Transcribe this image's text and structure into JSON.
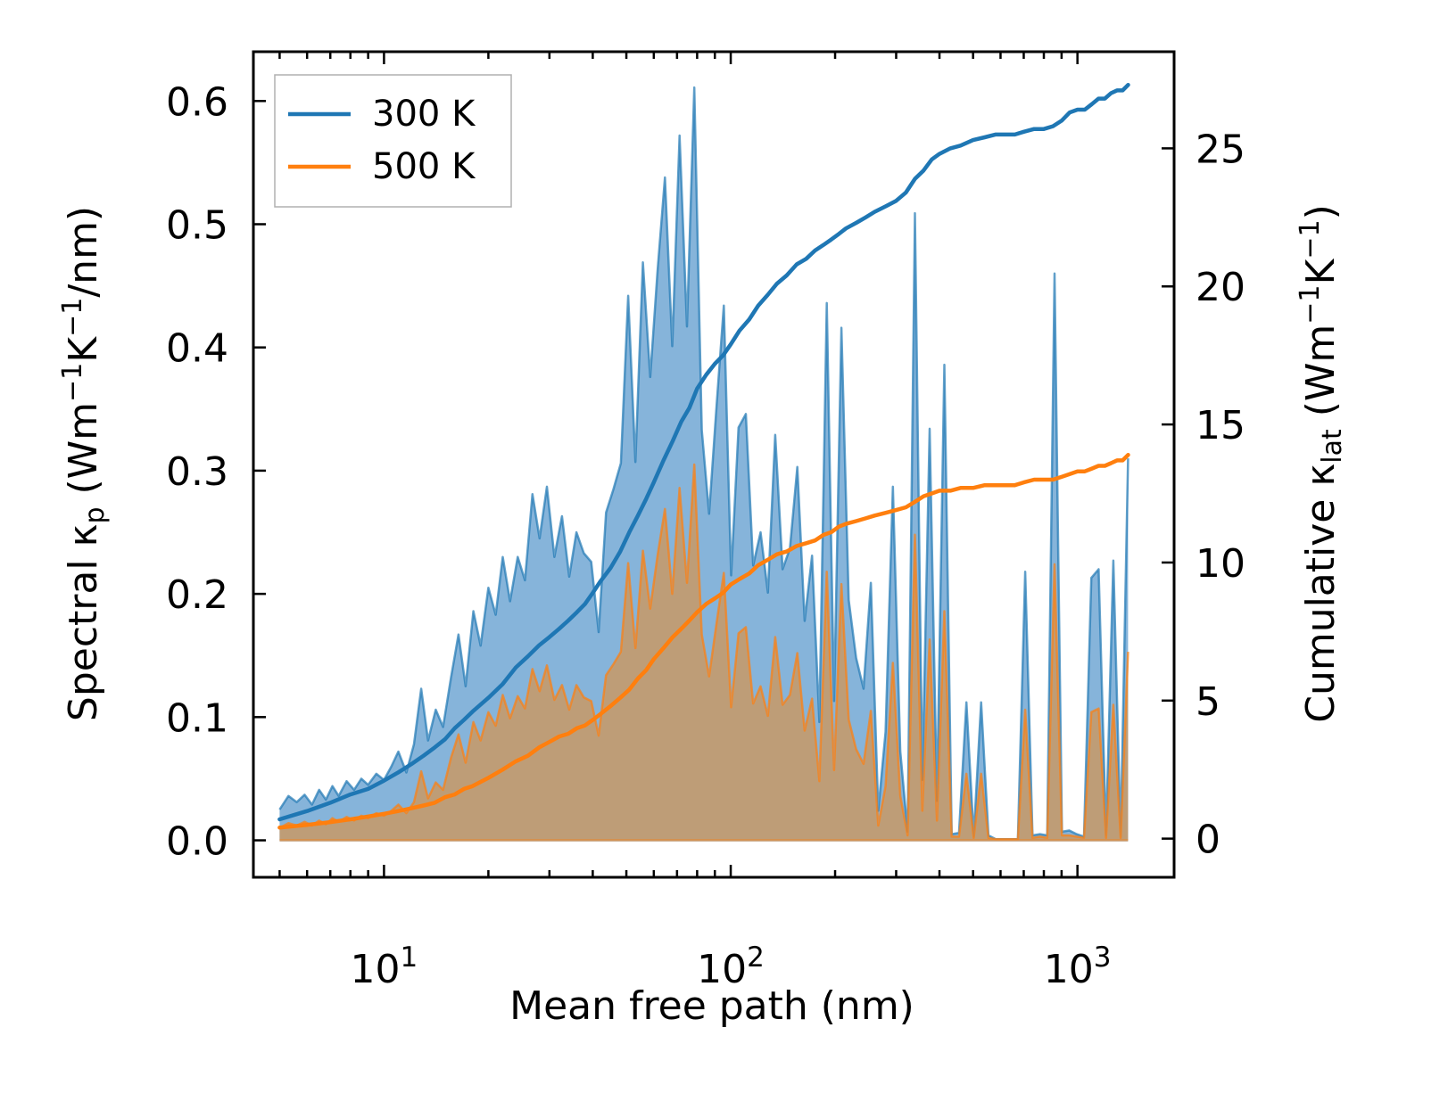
{
  "chart_data": {
    "type": "area",
    "xscale": "log",
    "xlabel": "Mean free path (nm)",
    "ylabel_left": "Spectral κp (Wm−1K−1/nm)",
    "ylabel_left_parts": {
      "a": "Spectral κ",
      "sub": "p",
      "b": " (Wm",
      "sup1": "−1",
      "c": "K",
      "sup2": "−1",
      "d": "/nm)"
    },
    "ylabel_right": "Cumulative κlat (Wm−1K−1)",
    "ylabel_right_parts": {
      "a": "Cumulative κ",
      "sub": "lat",
      "b": " (Wm",
      "sup1": "−1",
      "c": "K",
      "sup2": "−1",
      "d": ")"
    },
    "xlim": [
      4.2,
      1900
    ],
    "ylim_left": [
      -0.03,
      0.64
    ],
    "ylim_right": [
      -1.4,
      28.5
    ],
    "xticks": [
      {
        "value": 10,
        "base": "10",
        "exp": "1"
      },
      {
        "value": 100,
        "base": "10",
        "exp": "2"
      },
      {
        "value": 1000,
        "base": "10",
        "exp": "3"
      }
    ],
    "yticks_left": [
      {
        "value": 0.0,
        "label": "0.0"
      },
      {
        "value": 0.1,
        "label": "0.1"
      },
      {
        "value": 0.2,
        "label": "0.2"
      },
      {
        "value": 0.3,
        "label": "0.3"
      },
      {
        "value": 0.4,
        "label": "0.4"
      },
      {
        "value": 0.5,
        "label": "0.5"
      },
      {
        "value": 0.6,
        "label": "0.6"
      }
    ],
    "yticks_right": [
      {
        "value": 0,
        "label": "0"
      },
      {
        "value": 5,
        "label": "5"
      },
      {
        "value": 10,
        "label": "10"
      },
      {
        "value": 15,
        "label": "15"
      },
      {
        "value": 20,
        "label": "20"
      },
      {
        "value": 25,
        "label": "25"
      }
    ],
    "legend": {
      "position": "top-left",
      "entries": [
        "300 K",
        "500 K"
      ]
    },
    "series": [
      {
        "name": "300 K",
        "color": "#1f77b4",
        "fill": "#7fb0d8",
        "spectral_x": [
          5.0,
          5.3,
          5.6,
          5.9,
          6.2,
          6.5,
          6.8,
          7.1,
          7.4,
          7.8,
          8.2,
          8.6,
          9.0,
          9.5,
          10.0,
          10.5,
          11.0,
          11.6,
          12.2,
          12.8,
          13.4,
          14.1,
          14.8,
          15.6,
          16.4,
          17.2,
          18.1,
          19.0,
          20.0,
          21.0,
          22.0,
          23.1,
          24.3,
          25.5,
          26.8,
          28.1,
          29.5,
          31.0,
          32.6,
          34.2,
          35.9,
          37.7,
          39.6,
          41.6,
          43.7,
          45.9,
          48.2,
          50.6,
          53.1,
          55.8,
          58.6,
          61.5,
          64.6,
          67.8,
          71.2,
          74.8,
          78.5,
          82.5,
          86.6,
          91.0,
          95.5,
          100.3,
          105.3,
          110.6,
          116.1,
          121.9,
          128.0,
          134.4,
          141.1,
          148.2,
          155.6,
          163.4,
          171.6,
          180.2,
          189.2,
          198.7,
          208.6,
          219.0,
          230.0,
          241.5,
          253.6,
          266.3,
          279.6,
          293.6,
          308.3,
          323.7,
          339.9,
          356.9,
          374.7,
          393.4,
          413.1,
          433.8,
          455.5,
          478.3,
          502.2,
          527.3,
          553.7,
          581.4,
          610.5,
          641.0,
          673.1,
          706.8,
          742.1,
          779.2,
          818.2,
          859.1,
          902.0,
          947.1,
          994.5,
          1044.2,
          1096.4,
          1151.2,
          1208.8,
          1269.2,
          1332.7,
          1399.3
        ],
        "spectral_y": [
          0.025,
          0.036,
          0.031,
          0.037,
          0.029,
          0.041,
          0.033,
          0.044,
          0.036,
          0.048,
          0.041,
          0.05,
          0.045,
          0.054,
          0.049,
          0.06,
          0.072,
          0.055,
          0.078,
          0.123,
          0.081,
          0.106,
          0.092,
          0.132,
          0.167,
          0.125,
          0.186,
          0.158,
          0.205,
          0.183,
          0.23,
          0.194,
          0.23,
          0.211,
          0.281,
          0.245,
          0.287,
          0.23,
          0.263,
          0.214,
          0.25,
          0.233,
          0.226,
          0.169,
          0.266,
          0.285,
          0.306,
          0.442,
          0.307,
          0.469,
          0.376,
          0.462,
          0.538,
          0.401,
          0.572,
          0.417,
          0.611,
          0.333,
          0.265,
          0.352,
          0.434,
          0.215,
          0.335,
          0.346,
          0.223,
          0.25,
          0.201,
          0.329,
          0.22,
          0.237,
          0.303,
          0.178,
          0.231,
          0.096,
          0.436,
          0.113,
          0.416,
          0.195,
          0.148,
          0.123,
          0.209,
          0.024,
          0.088,
          0.287,
          0.072,
          0.007,
          0.509,
          0.049,
          0.334,
          0.032,
          0.386,
          0.005,
          0.006,
          0.112,
          0.003,
          0.112,
          0.004,
          0.001,
          0.001,
          0.001,
          0.001,
          0.218,
          0.004,
          0.005,
          0.004,
          0.46,
          0.007,
          0.008,
          0.005,
          0.003,
          0.213,
          0.22,
          0.004,
          0.227,
          0.003,
          0.31
        ],
        "cumulative_x": [
          5.0,
          6.0,
          7.0,
          8.0,
          9.0,
          10.0,
          11.0,
          12.0,
          13.0,
          14.0,
          15.0,
          16.0,
          17.0,
          18.0,
          20.0,
          22.0,
          24.0,
          26.0,
          28.0,
          30.0,
          32.0,
          34.0,
          36.0,
          38.0,
          40.0,
          42.0,
          45.0,
          48.0,
          51.0,
          54.0,
          57.0,
          60.0,
          64.0,
          68.0,
          72.0,
          76.0,
          80.0,
          85.0,
          90.0,
          95.0,
          100.0,
          106.0,
          113.0,
          120.0,
          128.0,
          136.0,
          145.0,
          155.0,
          165.0,
          175.0,
          185.0,
          195.0,
          205.0,
          215.0,
          230.0,
          245.0,
          260.0,
          280.0,
          300.0,
          320.0,
          340.0,
          360.0,
          380.0,
          400.0,
          430.0,
          460.0,
          500.0,
          540.0,
          580.0,
          620.0,
          660.0,
          700.0,
          750.0,
          800.0,
          850.0,
          900.0,
          950.0,
          1000.0,
          1050.0,
          1100.0,
          1150.0,
          1200.0,
          1250.0,
          1300.0,
          1350.0,
          1400.0
        ],
        "cumulative_y": [
          0.7,
          1.0,
          1.3,
          1.6,
          1.8,
          2.1,
          2.4,
          2.7,
          3.0,
          3.3,
          3.6,
          4.0,
          4.3,
          4.6,
          5.1,
          5.6,
          6.2,
          6.6,
          7.0,
          7.3,
          7.6,
          7.9,
          8.2,
          8.5,
          8.9,
          9.3,
          9.8,
          10.4,
          11.1,
          11.7,
          12.3,
          12.9,
          13.7,
          14.4,
          15.1,
          15.6,
          16.3,
          16.8,
          17.2,
          17.5,
          17.9,
          18.4,
          18.8,
          19.3,
          19.7,
          20.1,
          20.4,
          20.8,
          21.0,
          21.3,
          21.5,
          21.7,
          21.9,
          22.1,
          22.3,
          22.5,
          22.7,
          22.9,
          23.1,
          23.4,
          23.9,
          24.2,
          24.6,
          24.8,
          25.0,
          25.1,
          25.3,
          25.4,
          25.5,
          25.5,
          25.5,
          25.6,
          25.7,
          25.7,
          25.8,
          26.0,
          26.3,
          26.4,
          26.4,
          26.6,
          26.8,
          26.8,
          27.0,
          27.1,
          27.1,
          27.3
        ]
      },
      {
        "name": "500 K",
        "color": "#ff7f0e",
        "fill": "#c49a6c",
        "spectral_x": [
          5.0,
          5.3,
          5.6,
          5.9,
          6.2,
          6.5,
          6.8,
          7.1,
          7.4,
          7.8,
          8.2,
          8.6,
          9.0,
          9.5,
          10.0,
          10.5,
          11.0,
          11.6,
          12.2,
          12.8,
          13.4,
          14.1,
          14.8,
          15.6,
          16.4,
          17.2,
          18.1,
          19.0,
          20.0,
          21.0,
          22.0,
          23.1,
          24.3,
          25.5,
          26.8,
          28.1,
          29.5,
          31.0,
          32.6,
          34.2,
          35.9,
          37.7,
          39.6,
          41.6,
          43.7,
          45.9,
          48.2,
          50.6,
          53.1,
          55.8,
          58.6,
          61.5,
          64.6,
          67.8,
          71.2,
          74.8,
          78.5,
          82.5,
          86.6,
          91.0,
          95.5,
          100.3,
          105.3,
          110.6,
          116.1,
          121.9,
          128.0,
          134.4,
          141.1,
          148.2,
          155.6,
          163.4,
          171.6,
          180.2,
          189.2,
          198.7,
          208.6,
          219.0,
          230.0,
          241.5,
          253.6,
          266.3,
          279.6,
          293.6,
          308.3,
          323.7,
          339.9,
          356.9,
          374.7,
          393.4,
          413.1,
          433.8,
          455.5,
          478.3,
          502.2,
          527.3,
          553.7,
          581.4,
          610.5,
          641.0,
          673.1,
          706.8,
          742.1,
          779.2,
          818.2,
          859.1,
          902.0,
          947.1,
          994.5,
          1044.2,
          1096.4,
          1151.2,
          1208.8,
          1269.2,
          1332.7,
          1399.3
        ],
        "spectral_y": [
          0.01,
          0.014,
          0.012,
          0.015,
          0.012,
          0.016,
          0.013,
          0.018,
          0.015,
          0.019,
          0.016,
          0.02,
          0.018,
          0.022,
          0.02,
          0.024,
          0.029,
          0.022,
          0.031,
          0.056,
          0.034,
          0.047,
          0.041,
          0.067,
          0.086,
          0.063,
          0.096,
          0.081,
          0.104,
          0.093,
          0.118,
          0.099,
          0.117,
          0.107,
          0.139,
          0.121,
          0.142,
          0.114,
          0.126,
          0.106,
          0.126,
          0.116,
          0.113,
          0.085,
          0.134,
          0.143,
          0.153,
          0.225,
          0.156,
          0.235,
          0.188,
          0.231,
          0.269,
          0.2,
          0.286,
          0.209,
          0.305,
          0.167,
          0.133,
          0.176,
          0.217,
          0.108,
          0.168,
          0.173,
          0.111,
          0.125,
          0.101,
          0.165,
          0.11,
          0.118,
          0.152,
          0.089,
          0.115,
          0.048,
          0.218,
          0.057,
          0.208,
          0.098,
          0.074,
          0.062,
          0.105,
          0.012,
          0.044,
          0.144,
          0.036,
          0.004,
          0.248,
          0.024,
          0.163,
          0.016,
          0.186,
          0.003,
          0.003,
          0.054,
          0.002,
          0.054,
          0.002,
          0.001,
          0.001,
          0.001,
          0.001,
          0.106,
          0.002,
          0.003,
          0.002,
          0.224,
          0.004,
          0.004,
          0.003,
          0.002,
          0.104,
          0.107,
          0.002,
          0.11,
          0.002,
          0.153
        ],
        "cumulative_x": [
          5.0,
          6.0,
          7.0,
          8.0,
          9.0,
          10.0,
          11.0,
          12.0,
          13.0,
          14.0,
          15.0,
          16.0,
          17.0,
          18.0,
          20.0,
          22.0,
          24.0,
          26.0,
          28.0,
          30.0,
          32.0,
          34.0,
          36.0,
          38.0,
          40.0,
          42.0,
          45.0,
          48.0,
          51.0,
          54.0,
          57.0,
          60.0,
          64.0,
          68.0,
          72.0,
          76.0,
          80.0,
          85.0,
          90.0,
          95.0,
          100.0,
          106.0,
          113.0,
          120.0,
          128.0,
          136.0,
          145.0,
          155.0,
          165.0,
          175.0,
          185.0,
          195.0,
          205.0,
          215.0,
          230.0,
          245.0,
          260.0,
          280.0,
          300.0,
          320.0,
          340.0,
          360.0,
          380.0,
          400.0,
          430.0,
          460.0,
          500.0,
          540.0,
          580.0,
          620.0,
          660.0,
          700.0,
          750.0,
          800.0,
          850.0,
          900.0,
          950.0,
          1000.0,
          1050.0,
          1100.0,
          1150.0,
          1200.0,
          1250.0,
          1300.0,
          1350.0,
          1400.0
        ],
        "cumulative_y": [
          0.4,
          0.5,
          0.6,
          0.7,
          0.8,
          0.9,
          1.0,
          1.1,
          1.2,
          1.3,
          1.5,
          1.6,
          1.8,
          1.9,
          2.2,
          2.5,
          2.8,
          3.0,
          3.3,
          3.5,
          3.7,
          3.8,
          4.0,
          4.1,
          4.3,
          4.5,
          4.8,
          5.1,
          5.4,
          5.8,
          6.1,
          6.5,
          6.9,
          7.3,
          7.6,
          7.9,
          8.2,
          8.5,
          8.7,
          8.9,
          9.2,
          9.4,
          9.6,
          9.9,
          10.1,
          10.3,
          10.4,
          10.6,
          10.7,
          10.8,
          11.0,
          11.1,
          11.3,
          11.4,
          11.5,
          11.6,
          11.7,
          11.8,
          11.9,
          12.0,
          12.2,
          12.4,
          12.5,
          12.6,
          12.6,
          12.7,
          12.7,
          12.8,
          12.8,
          12.8,
          12.8,
          12.9,
          13.0,
          13.0,
          13.0,
          13.1,
          13.2,
          13.3,
          13.3,
          13.4,
          13.5,
          13.5,
          13.6,
          13.7,
          13.7,
          13.9
        ]
      }
    ]
  }
}
